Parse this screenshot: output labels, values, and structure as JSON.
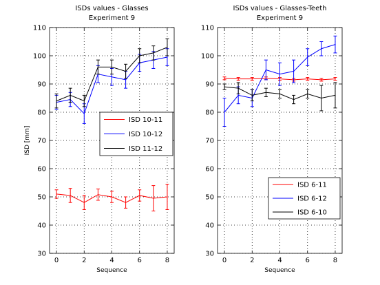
{
  "chart_data": [
    {
      "type": "line",
      "title": "ISDs values - Glasses",
      "subtitle": "Experiment 9",
      "xlabel": "Sequence",
      "ylabel": "ISD [mm]",
      "xlim": [
        -0.5,
        8.5
      ],
      "ylim": [
        30,
        110
      ],
      "xticks": [
        0,
        2,
        4,
        6,
        8
      ],
      "yticks": [
        30,
        40,
        50,
        60,
        70,
        80,
        90,
        100,
        110
      ],
      "grid": true,
      "legend_position": "middle-right",
      "x": [
        0,
        1,
        2,
        3,
        4,
        5,
        6,
        7,
        8
      ],
      "series": [
        {
          "name": "ISD 10-11",
          "color": "#ff0000",
          "values": [
            51,
            50.5,
            48,
            50.8,
            50,
            48,
            50.5,
            49.5,
            50
          ],
          "errors": [
            1.5,
            2.5,
            2.5,
            2,
            2,
            2,
            2,
            4.5,
            4.5
          ]
        },
        {
          "name": "ISD 10-12",
          "color": "#0000ff",
          "values": [
            83.5,
            84.5,
            79.5,
            93.5,
            92.5,
            91.5,
            97.5,
            98.5,
            99.5
          ],
          "errors": [
            2.5,
            2.5,
            3.5,
            3,
            3,
            3,
            3,
            3,
            3
          ]
        },
        {
          "name": "ISD 11-12",
          "color": "#000000",
          "values": [
            84,
            86,
            84,
            96,
            96,
            94.5,
            100,
            101,
            103
          ],
          "errors": [
            2.5,
            2.5,
            2,
            2.5,
            2.5,
            2.5,
            2.5,
            2.5,
            3
          ]
        }
      ]
    },
    {
      "type": "line",
      "title": "ISDs values - Glasses-Teeth",
      "subtitle": "Experiment 9",
      "xlabel": "Sequence",
      "ylabel": "",
      "xlim": [
        -0.5,
        8.5
      ],
      "ylim": [
        30,
        110
      ],
      "xticks": [
        0,
        2,
        4,
        6,
        8
      ],
      "yticks": [
        30,
        40,
        50,
        60,
        70,
        80,
        90,
        100,
        110
      ],
      "grid": true,
      "legend_position": "lower-right",
      "x": [
        0,
        1,
        2,
        3,
        4,
        5,
        6,
        7,
        8
      ],
      "series": [
        {
          "name": "ISD 6-11",
          "color": "#ff0000",
          "values": [
            92,
            91.8,
            91.8,
            92,
            91.8,
            91.5,
            91.8,
            91.5,
            91.8
          ],
          "errors": [
            0.5,
            0.5,
            0.5,
            0.5,
            0.5,
            0.5,
            0.5,
            0.5,
            0.5
          ]
        },
        {
          "name": "ISD 6-12",
          "color": "#0000ff",
          "values": [
            80,
            86,
            85,
            95,
            93.5,
            94.5,
            99.5,
            102.5,
            104
          ],
          "errors": [
            5,
            3,
            3,
            3.5,
            4,
            4,
            3,
            2.5,
            3
          ]
        },
        {
          "name": "ISD 6-10",
          "color": "#000000",
          "values": [
            89,
            88.5,
            86,
            87,
            86.5,
            84.5,
            86.5,
            85,
            86
          ],
          "errors": [
            1,
            2,
            2,
            1.5,
            1.5,
            1.5,
            1.5,
            4.5,
            4.5
          ]
        }
      ]
    }
  ]
}
